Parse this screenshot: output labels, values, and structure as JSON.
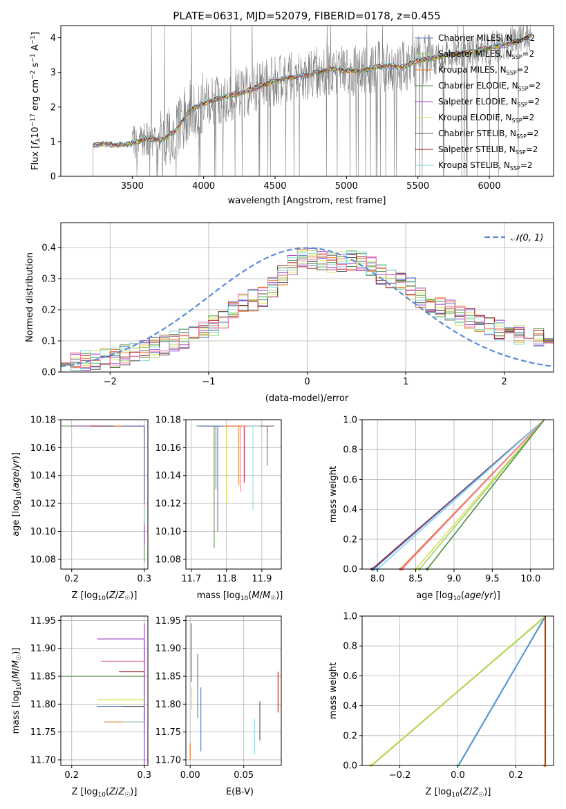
{
  "title": "PLATE=0631, MJD=52079, FIBERID=0178, z=0.455",
  "colors": {
    "chabrier_miles": "#4c72d0",
    "salpeter_miles": "#9bd06a",
    "kroupa_miles": "#e8761e",
    "chabrier_elodie": "#4e8a3e",
    "salpeter_elodie": "#a23cc8",
    "kroupa_elodie": "#d6e04a",
    "chabrier_stelib": "#555555",
    "salpeter_stelib": "#9e1a1a",
    "kroupa_stelib": "#86d4dc",
    "pink": "#f07aa0",
    "data": "#808080",
    "normal": "#5b8bd9"
  },
  "chart_data": [
    {
      "type": "line",
      "title": "PLATE=0631, MJD=52079, FIBERID=0178, z=0.455",
      "xlabel": "wavelength [Angstrom, rest frame]",
      "ylabel": "Flux [f_λ 10⁻¹⁷ erg cm⁻² s⁻¹ A⁻¹]",
      "xlim": [
        3000,
        6450
      ],
      "ylim": [
        0,
        4.35
      ],
      "xticks": [
        "3500",
        "4000",
        "4500",
        "5000",
        "5500",
        "6000"
      ],
      "yticks": [
        "0",
        "1",
        "2",
        "3",
        "4"
      ],
      "grid": false,
      "legend_position": "top-right",
      "legend": [
        "Chabrier MILES, N_SSP=2",
        "Salpeter MILES, N_SSP=2",
        "Kroupa MILES, N_SSP=2",
        "Chabrier ELODIE, N_SSP=2",
        "Salpeter ELODIE, N_SSP=2",
        "Kroupa ELODIE, N_SSP=2",
        "Chabrier STELIB, N_SSP=2",
        "Salpeter STELIB, N_SSP=2",
        "Kroupa STELIB, N_SSP=2"
      ],
      "model_continuum": {
        "x": [
          3225,
          3300,
          3400,
          3500,
          3600,
          3700,
          3800,
          3900,
          4000,
          4100,
          4200,
          4300,
          4400,
          4500,
          4600,
          4700,
          4800,
          4900,
          5000,
          5100,
          5200,
          5300,
          5400,
          5500,
          5600,
          5700,
          5800,
          5900,
          6000,
          6100,
          6200,
          6300
        ],
        "y": [
          0.9,
          0.95,
          0.9,
          0.95,
          1.1,
          1.05,
          1.3,
          1.9,
          2.1,
          2.25,
          2.35,
          2.45,
          2.6,
          2.75,
          2.85,
          2.9,
          3.0,
          3.1,
          3.05,
          3.05,
          3.15,
          3.2,
          3.15,
          3.35,
          3.4,
          3.5,
          3.55,
          3.6,
          3.7,
          3.8,
          3.9,
          4.1
        ]
      }
    },
    {
      "type": "line",
      "xlabel": "(data-model)/error",
      "ylabel": "Normed distribution",
      "xlim": [
        -2.5,
        2.5
      ],
      "ylim": [
        0,
        0.48
      ],
      "xticks": [
        "−2",
        "−1",
        "0",
        "1",
        "2"
      ],
      "yticks": [
        "0.0",
        "0.1",
        "0.2",
        "0.3",
        "0.4"
      ],
      "grid": true,
      "legend_position": "top-right",
      "legend": [
        "𝒩(0, 1)"
      ],
      "histogram_envelope": {
        "x": [
          -2.5,
          -2.0,
          -1.5,
          -1.0,
          -0.7,
          -0.4,
          -0.2,
          0.0,
          0.2,
          0.4,
          0.6,
          0.8,
          1.0,
          1.2,
          1.5,
          2.0,
          2.5
        ],
        "y": [
          0.025,
          0.045,
          0.08,
          0.14,
          0.21,
          0.25,
          0.33,
          0.37,
          0.35,
          0.36,
          0.36,
          0.3,
          0.28,
          0.23,
          0.19,
          0.13,
          0.1
        ]
      }
    },
    {
      "type": "scatter",
      "xlabel": "Z [log₁₀(Z/Z☉)]",
      "ylabel": "age  [log₁₀(age/yr)]",
      "xlim": [
        0.185,
        0.305
      ],
      "ylim": [
        10.073,
        10.18
      ],
      "xticks": [
        "0.2",
        "0.3"
      ],
      "yticks": [
        "10.08",
        "10.10",
        "10.12",
        "10.14",
        "10.16",
        "10.18"
      ]
    },
    {
      "type": "scatter",
      "xlabel": "mass [log₁₀(M/M☉)]",
      "xlim": [
        11.685,
        11.955
      ],
      "ylim": [
        10.073,
        10.18
      ],
      "xticks": [
        "11.7",
        "11.8",
        "11.9"
      ],
      "yticks": [
        "10.08",
        "10.10",
        "10.12",
        "10.14",
        "10.16",
        "10.18"
      ]
    },
    {
      "type": "line",
      "xlabel": "age  [log₁₀(age/yr)]",
      "ylabel": "mass weight",
      "xlim": [
        7.8,
        10.3
      ],
      "ylim": [
        0,
        1
      ],
      "xticks": [
        "8.0",
        "8.5",
        "9.0",
        "9.5",
        "10.0"
      ],
      "yticks": [
        "0.0",
        "0.2",
        "0.4",
        "0.6",
        "0.8",
        "1.0"
      ],
      "grid": true,
      "lines": [
        {
          "x": [
            7.93,
            10.18
          ],
          "y": [
            0,
            1
          ]
        },
        {
          "x": [
            7.95,
            10.18
          ],
          "y": [
            0,
            1
          ]
        },
        {
          "x": [
            8.0,
            10.18
          ],
          "y": [
            0,
            1
          ]
        },
        {
          "x": [
            8.3,
            10.18
          ],
          "y": [
            0,
            1
          ]
        },
        {
          "x": [
            8.32,
            10.18
          ],
          "y": [
            0,
            1
          ]
        },
        {
          "x": [
            8.5,
            10.18
          ],
          "y": [
            0,
            1
          ]
        },
        {
          "x": [
            8.55,
            10.18
          ],
          "y": [
            0,
            1
          ]
        },
        {
          "x": [
            8.65,
            10.18
          ],
          "y": [
            0,
            1
          ]
        }
      ]
    },
    {
      "type": "scatter",
      "xlabel": "Z [log₁₀(Z/Z☉)]",
      "ylabel": "mass [log₁₀(M/M☉)]",
      "xlim": [
        0.185,
        0.305
      ],
      "ylim": [
        11.69,
        11.958
      ],
      "xticks": [
        "0.2",
        "0.3"
      ],
      "yticks": [
        "11.70",
        "11.75",
        "11.80",
        "11.85",
        "11.90",
        "11.95"
      ]
    },
    {
      "type": "scatter",
      "xlabel": "E(B-V)",
      "xlim": [
        -0.004,
        0.085
      ],
      "ylim": [
        11.69,
        11.958
      ],
      "xticks": [
        "0.00",
        "0.05"
      ],
      "yticks": [
        "11.70",
        "11.75",
        "11.80",
        "11.85",
        "11.90",
        "11.95"
      ],
      "points": [
        {
          "x": 0.0,
          "y_min": 11.7,
          "y_max": 11.73
        },
        {
          "x": 0.001,
          "y_min": 11.84,
          "y_max": 11.945
        },
        {
          "x": 0.0015,
          "y_min": 11.79,
          "y_max": 11.83
        },
        {
          "x": 0.007,
          "y_min": 11.775,
          "y_max": 11.89
        },
        {
          "x": 0.01,
          "y_min": 11.715,
          "y_max": 11.83
        },
        {
          "x": 0.06,
          "y_min": 11.71,
          "y_max": 11.775
        },
        {
          "x": 0.065,
          "y_min": 11.735,
          "y_max": 11.805
        },
        {
          "x": 0.082,
          "y_min": 11.785,
          "y_max": 11.858
        }
      ]
    },
    {
      "type": "line",
      "xlabel": "Z [log₁₀(Z/Z☉)]",
      "ylabel": "mass weight",
      "xlim": [
        -0.33,
        0.33
      ],
      "ylim": [
        0,
        1
      ],
      "xticks": [
        "−0.2",
        "0.0",
        "0.2"
      ],
      "yticks": [
        "0.0",
        "0.2",
        "0.4",
        "0.6",
        "0.8",
        "1.0"
      ],
      "grid": true,
      "lines": [
        {
          "x": [
            -0.3,
            0.3
          ],
          "y": [
            0,
            1
          ]
        },
        {
          "x": [
            0.0,
            0.3
          ],
          "y": [
            0,
            1
          ]
        },
        {
          "x": [
            0.3,
            0.3
          ],
          "y": [
            0,
            1
          ]
        }
      ]
    }
  ]
}
